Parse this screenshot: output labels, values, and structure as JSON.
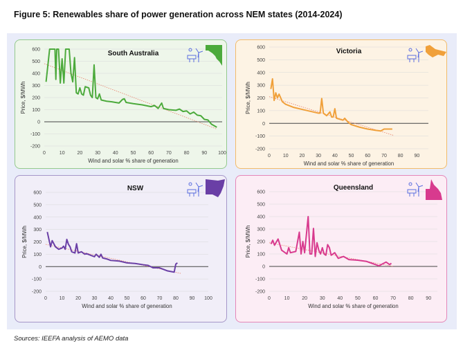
{
  "title": "Figure 5: Renewables share of power generation across NEM states (2014-2024)",
  "source": "Sources: IEEFA analysis of AEMO data",
  "chart_data": [
    {
      "type": "line",
      "title": "South Australia",
      "xlabel": "Wind and solar % share of generation",
      "ylabel": "Price, $/MWh",
      "xlim": [
        0,
        100
      ],
      "ylim": [
        -200,
        600
      ],
      "xticks": [
        0,
        10,
        20,
        30,
        40,
        50,
        60,
        70,
        80,
        90,
        100
      ],
      "yticks": [
        600,
        500,
        400,
        300,
        200,
        100,
        0,
        -100,
        -200
      ],
      "grid": true,
      "color": "#4caa3c",
      "bg": "#eef6ea",
      "border": "#93c98c",
      "icon": "wind-solar-icon",
      "state_icon": "south-australia-map-icon",
      "series": [
        {
          "values": [
            [
              1,
              330
            ],
            [
              3,
              600
            ],
            [
              6,
              600
            ],
            [
              6.5,
              350
            ],
            [
              7,
              600
            ],
            [
              8,
              600
            ],
            [
              9,
              320
            ],
            [
              10,
              520
            ],
            [
              11,
              320
            ],
            [
              12,
              600
            ],
            [
              14,
              600
            ],
            [
              15,
              400
            ],
            [
              16,
              330
            ],
            [
              17,
              530
            ],
            [
              18,
              240
            ],
            [
              19,
              230
            ],
            [
              20,
              280
            ],
            [
              21,
              230
            ],
            [
              22,
              220
            ],
            [
              23,
              290
            ],
            [
              25,
              280
            ],
            [
              26,
              220
            ],
            [
              27,
              200
            ],
            [
              28,
              470
            ],
            [
              29,
              200
            ],
            [
              30,
              190
            ],
            [
              31,
              230
            ],
            [
              32,
              180
            ],
            [
              35,
              170
            ],
            [
              38,
              165
            ],
            [
              40,
              160
            ],
            [
              42,
              155
            ],
            [
              44,
              185
            ],
            [
              45,
              190
            ],
            [
              46,
              160
            ],
            [
              50,
              150
            ],
            [
              55,
              140
            ],
            [
              60,
              125
            ],
            [
              62,
              135
            ],
            [
              64,
              110
            ],
            [
              66,
              155
            ],
            [
              67,
              110
            ],
            [
              70,
              100
            ],
            [
              74,
              95
            ],
            [
              76,
              105
            ],
            [
              78,
              85
            ],
            [
              80,
              90
            ],
            [
              82,
              65
            ],
            [
              84,
              80
            ],
            [
              86,
              55
            ],
            [
              88,
              50
            ],
            [
              90,
              20
            ],
            [
              92,
              15
            ],
            [
              94,
              -20
            ],
            [
              97,
              -45
            ]
          ]
        }
      ],
      "trendline": [
        [
          0,
          480
        ],
        [
          97,
          -60
        ]
      ]
    },
    {
      "type": "line",
      "title": "Victoria",
      "xlabel": "Wind and solar % share of generation",
      "ylabel": "Price, $/MWh",
      "xlim": [
        0,
        97
      ],
      "ylim": [
        -200,
        600
      ],
      "xticks": [
        0,
        10,
        20,
        30,
        40,
        50,
        60,
        70,
        80,
        90
      ],
      "yticks": [
        600,
        500,
        400,
        300,
        200,
        100,
        0,
        -100,
        -200
      ],
      "grid": true,
      "color": "#f0a03a",
      "bg": "#fdf3e4",
      "border": "#f2bb6a",
      "icon": "wind-solar-icon",
      "state_icon": "victoria-map-icon",
      "series": [
        {
          "values": [
            [
              1,
              270
            ],
            [
              2,
              350
            ],
            [
              3,
              180
            ],
            [
              4,
              240
            ],
            [
              5,
              200
            ],
            [
              6,
              230
            ],
            [
              7,
              200
            ],
            [
              8,
              170
            ],
            [
              10,
              150
            ],
            [
              15,
              125
            ],
            [
              20,
              110
            ],
            [
              25,
              95
            ],
            [
              30,
              80
            ],
            [
              31,
              80
            ],
            [
              32,
              195
            ],
            [
              33,
              80
            ],
            [
              35,
              60
            ],
            [
              37,
              90
            ],
            [
              38,
              50
            ],
            [
              39,
              50
            ],
            [
              40,
              115
            ],
            [
              41,
              40
            ],
            [
              45,
              25
            ],
            [
              46,
              40
            ],
            [
              48,
              10
            ],
            [
              50,
              -10
            ],
            [
              55,
              -30
            ],
            [
              60,
              -45
            ],
            [
              65,
              -55
            ],
            [
              68,
              -60
            ],
            [
              70,
              -45
            ],
            [
              75,
              -45
            ]
          ]
        }
      ],
      "trendline": [
        [
          0,
          210
        ],
        [
          76,
          -95
        ]
      ]
    },
    {
      "type": "line",
      "title": "NSW",
      "xlabel": "Wind and solar % share of generation",
      "ylabel": "Price, $/MWh",
      "xlim": [
        0,
        100
      ],
      "ylim": [
        -200,
        600
      ],
      "xticks": [
        0,
        10,
        20,
        30,
        40,
        50,
        60,
        70,
        80,
        90,
        100
      ],
      "yticks": [
        600,
        500,
        400,
        300,
        200,
        100,
        0,
        -100,
        -200
      ],
      "grid": true,
      "color": "#6a3fa6",
      "bg": "#f1eef8",
      "border": "#a596c8",
      "icon": "wind-solar-icon",
      "state_icon": "nsw-map-icon",
      "series": [
        {
          "values": [
            [
              1,
              280
            ],
            [
              3,
              160
            ],
            [
              4,
              210
            ],
            [
              6,
              160
            ],
            [
              8,
              140
            ],
            [
              10,
              150
            ],
            [
              11,
              165
            ],
            [
              12,
              140
            ],
            [
              13,
              220
            ],
            [
              14,
              180
            ],
            [
              15,
              160
            ],
            [
              16,
              120
            ],
            [
              18,
              110
            ],
            [
              19,
              185
            ],
            [
              20,
              110
            ],
            [
              22,
              120
            ],
            [
              24,
              100
            ],
            [
              25,
              105
            ],
            [
              28,
              90
            ],
            [
              30,
              80
            ],
            [
              31,
              100
            ],
            [
              33,
              75
            ],
            [
              34,
              100
            ],
            [
              35,
              70
            ],
            [
              38,
              60
            ],
            [
              40,
              50
            ],
            [
              45,
              45
            ],
            [
              50,
              30
            ],
            [
              55,
              25
            ],
            [
              60,
              15
            ],
            [
              63,
              10
            ],
            [
              66,
              -10
            ],
            [
              70,
              -10
            ],
            [
              75,
              -35
            ],
            [
              79,
              -45
            ],
            [
              80,
              20
            ],
            [
              81,
              30
            ]
          ]
        }
      ],
      "trendline": [
        [
          0,
          180
        ],
        [
          83,
          -55
        ]
      ]
    },
    {
      "type": "line",
      "title": "Queensland",
      "xlabel": "Wind and solar % share of generation",
      "ylabel": "Price, $/MWh",
      "xlim": [
        0,
        95
      ],
      "ylim": [
        -200,
        600
      ],
      "xticks": [
        0,
        10,
        20,
        30,
        40,
        50,
        60,
        70,
        80,
        90
      ],
      "yticks": [
        600,
        500,
        400,
        300,
        200,
        100,
        0,
        -100,
        -200
      ],
      "grid": true,
      "color": "#d83a8e",
      "bg": "#fcedf5",
      "border": "#e486b8",
      "icon": "wind-solar-icon",
      "state_icon": "queensland-map-icon",
      "series": [
        {
          "values": [
            [
              1,
              180
            ],
            [
              2,
              210
            ],
            [
              3,
              170
            ],
            [
              5,
              220
            ],
            [
              7,
              130
            ],
            [
              9,
              110
            ],
            [
              10,
              100
            ],
            [
              11,
              150
            ],
            [
              12,
              110
            ],
            [
              15,
              120
            ],
            [
              17,
              275
            ],
            [
              18,
              100
            ],
            [
              19,
              200
            ],
            [
              20,
              110
            ],
            [
              22,
              400
            ],
            [
              23,
              100
            ],
            [
              24,
              100
            ],
            [
              25,
              305
            ],
            [
              26,
              80
            ],
            [
              27,
              190
            ],
            [
              28,
              130
            ],
            [
              29,
              100
            ],
            [
              30,
              150
            ],
            [
              31,
              100
            ],
            [
              32,
              90
            ],
            [
              33,
              175
            ],
            [
              34,
              150
            ],
            [
              35,
              90
            ],
            [
              37,
              110
            ],
            [
              39,
              65
            ],
            [
              42,
              80
            ],
            [
              45,
              55
            ],
            [
              50,
              50
            ],
            [
              55,
              40
            ],
            [
              58,
              25
            ],
            [
              62,
              5
            ],
            [
              64,
              20
            ],
            [
              66,
              35
            ],
            [
              68,
              15
            ],
            [
              69,
              25
            ]
          ]
        }
      ],
      "trendline": [
        [
          0,
          190
        ],
        [
          70,
          0
        ]
      ]
    }
  ]
}
